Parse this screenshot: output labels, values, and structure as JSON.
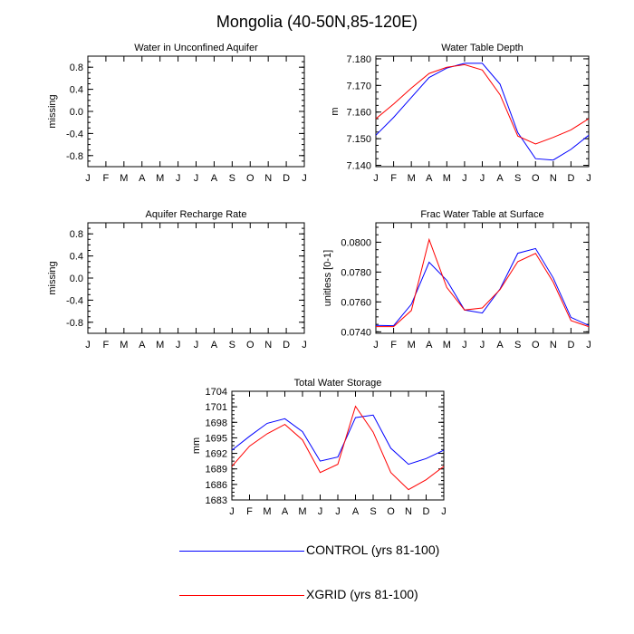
{
  "figure": {
    "title": "Mongolia (40-50N,85-120E)"
  },
  "colors": {
    "control": "#0000ff",
    "xgrid": "#ff0000",
    "axis": "#000000"
  },
  "legend": [
    {
      "label": "CONTROL (yrs 81-100)",
      "color": "#0000ff"
    },
    {
      "label": "XGRID (yrs 81-100)",
      "color": "#ff0000"
    }
  ],
  "chart_data": [
    {
      "type": "line",
      "title": "Water in Unconfined Aquifer",
      "xlabel": "",
      "ylabel": "missing",
      "categories": [
        "J",
        "F",
        "M",
        "A",
        "M",
        "J",
        "J",
        "A",
        "S",
        "O",
        "N",
        "D",
        "J"
      ],
      "yticks": [
        "0.8",
        "0.4",
        "0.0",
        "-0.4",
        "-0.8"
      ],
      "ytick_values": [
        0.8,
        0.4,
        0.0,
        -0.4,
        -0.8
      ],
      "ylim": [
        -1.0,
        1.0
      ],
      "series": []
    },
    {
      "type": "line",
      "title": "Water Table Depth",
      "xlabel": "",
      "ylabel": "m",
      "categories": [
        "J",
        "F",
        "M",
        "A",
        "M",
        "J",
        "J",
        "A",
        "S",
        "O",
        "N",
        "D",
        "J"
      ],
      "yticks": [
        "7.180",
        "7.170",
        "7.160",
        "7.150",
        "7.140"
      ],
      "ytick_values": [
        7.18,
        7.17,
        7.16,
        7.15,
        7.14
      ],
      "ylim": [
        7.1395,
        7.181
      ],
      "series": [
        {
          "color": "#0000ff",
          "values": [
            7.1513,
            7.158,
            7.1655,
            7.173,
            7.1765,
            7.1783,
            7.1783,
            7.1705,
            7.1523,
            7.1425,
            7.142,
            7.146,
            7.1513
          ]
        },
        {
          "color": "#ff0000",
          "values": [
            7.1575,
            7.163,
            7.169,
            7.1745,
            7.1768,
            7.1778,
            7.1758,
            7.1665,
            7.151,
            7.148,
            7.1505,
            7.1533,
            7.1575
          ]
        }
      ]
    },
    {
      "type": "line",
      "title": "Aquifer Recharge Rate",
      "xlabel": "",
      "ylabel": "missing",
      "categories": [
        "J",
        "F",
        "M",
        "A",
        "M",
        "J",
        "J",
        "A",
        "S",
        "O",
        "N",
        "D",
        "J"
      ],
      "yticks": [
        "0.8",
        "0.4",
        "0.0",
        "-0.4",
        "-0.8"
      ],
      "ytick_values": [
        0.8,
        0.4,
        0.0,
        -0.4,
        -0.8
      ],
      "ylim": [
        -1.0,
        1.0
      ],
      "series": []
    },
    {
      "type": "line",
      "title": "Frac Water Table at Surface",
      "xlabel": "",
      "ylabel": "unitless [0-1]",
      "categories": [
        "J",
        "F",
        "M",
        "A",
        "M",
        "J",
        "J",
        "A",
        "S",
        "O",
        "N",
        "D",
        "J"
      ],
      "yticks": [
        "0.0800",
        "0.0780",
        "0.0760",
        "0.0740"
      ],
      "ytick_values": [
        0.08,
        0.078,
        0.076,
        0.074
      ],
      "ylim": [
        0.0739,
        0.0813
      ],
      "series": [
        {
          "color": "#0000ff",
          "values": [
            0.07443,
            0.07441,
            0.07585,
            0.07866,
            0.07745,
            0.07546,
            0.07526,
            0.07687,
            0.07926,
            0.07958,
            0.07761,
            0.07497,
            0.07443
          ]
        },
        {
          "color": "#ff0000",
          "values": [
            0.07435,
            0.07435,
            0.07543,
            0.08018,
            0.07697,
            0.07546,
            0.0756,
            0.07683,
            0.0787,
            0.07925,
            0.07733,
            0.07475,
            0.07435
          ]
        }
      ]
    },
    {
      "type": "line",
      "title": "Total Water Storage",
      "xlabel": "",
      "ylabel": "mm",
      "categories": [
        "J",
        "F",
        "M",
        "A",
        "M",
        "J",
        "J",
        "A",
        "S",
        "O",
        "N",
        "D",
        "J"
      ],
      "yticks": [
        "1704",
        "1701",
        "1698",
        "1695",
        "1692",
        "1689",
        "1686",
        "1683"
      ],
      "ytick_values": [
        1704,
        1701,
        1698,
        1695,
        1692,
        1689,
        1686,
        1683
      ],
      "ylim": [
        1683,
        1704
      ],
      "series": [
        {
          "color": "#0000ff",
          "values": [
            1692.6,
            1695.3,
            1697.8,
            1698.7,
            1696.2,
            1690.5,
            1691.3,
            1698.9,
            1699.4,
            1693.0,
            1689.9,
            1691.0,
            1692.6
          ]
        },
        {
          "color": "#ff0000",
          "values": [
            1689.5,
            1693.4,
            1695.8,
            1697.6,
            1694.6,
            1688.3,
            1689.9,
            1701.1,
            1696.1,
            1688.3,
            1685.0,
            1686.9,
            1689.5
          ]
        }
      ]
    }
  ]
}
